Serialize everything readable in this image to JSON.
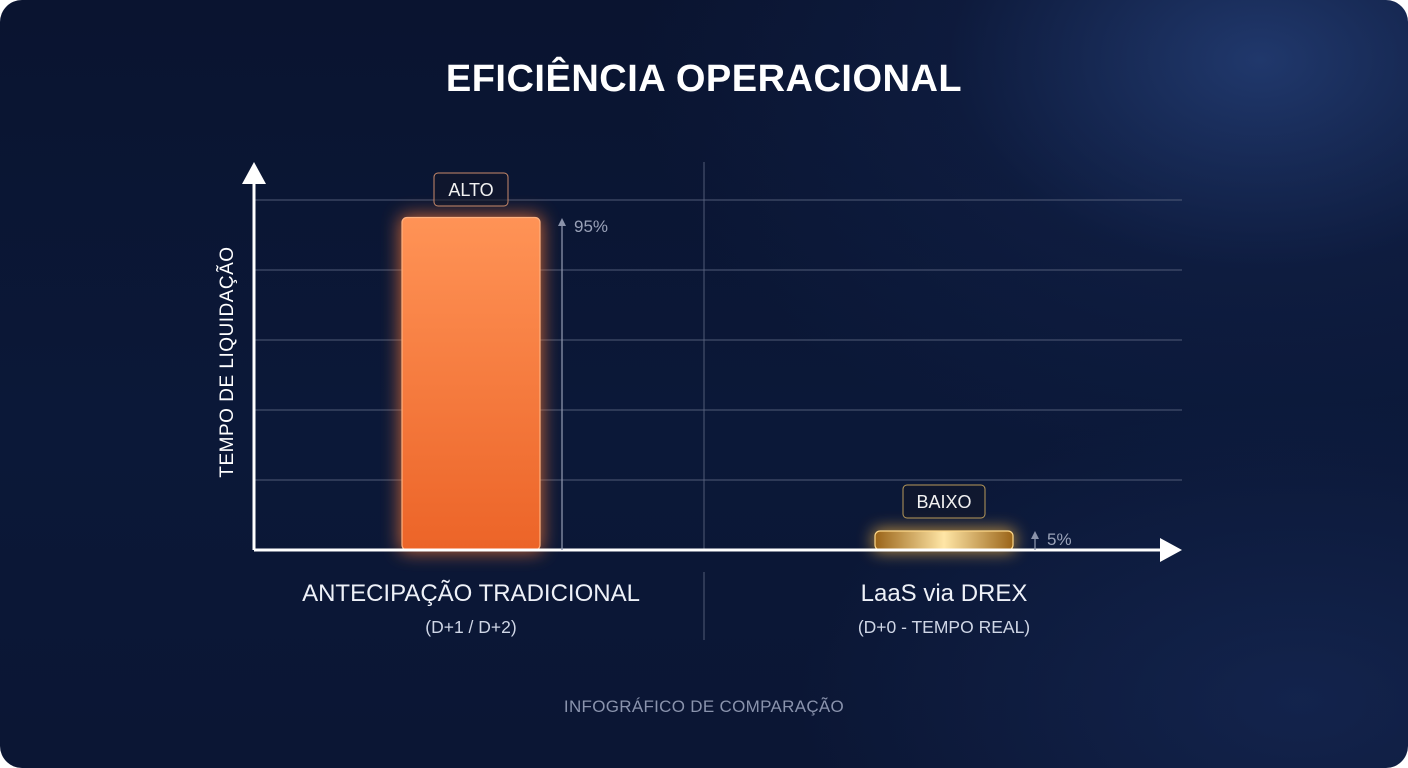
{
  "title": "EFICIÊNCIA OPERACIONAL",
  "footer": "INFOGRÁFICO DE COMPARAÇÃO",
  "colors": {
    "background": "#0b1838",
    "bar_traditional": "#f57a3c",
    "bar_drex": "#d9a042",
    "axis": "#ffffff",
    "grid": "#5d6782"
  },
  "chart_data": {
    "type": "bar",
    "title": "EFICIÊNCIA OPERACIONAL",
    "ylabel": "TEMPO DE LIQUIDAÇÃO",
    "xlabel": "",
    "ylim": [
      0,
      100
    ],
    "grid": true,
    "categories": [
      {
        "label": "ANTECIPAÇÃO TRADICIONAL",
        "sublabel": "(D+1 / D+2)"
      },
      {
        "label": "LaaS via DREX",
        "sublabel": "(D+0 - TEMPO REAL)"
      }
    ],
    "values": [
      95,
      5
    ],
    "value_labels": [
      "95%",
      "5%"
    ],
    "level_labels": [
      "ALTO",
      "BAIXO"
    ]
  }
}
